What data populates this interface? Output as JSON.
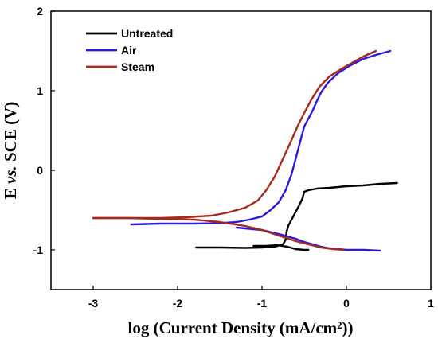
{
  "chart_data": {
    "type": "line",
    "title": "",
    "xlabel": "log (Current Density (mA/cm²))",
    "ylabel_parts": [
      "E ",
      "vs.",
      " SCE (V)"
    ],
    "xlim": [
      -3.5,
      1
    ],
    "ylim": [
      -1.5,
      2
    ],
    "xticks": [
      -3,
      -2,
      -1,
      0,
      1
    ],
    "yticks": [
      -1,
      0,
      1,
      2
    ],
    "grid": false,
    "legend_position": "top-left",
    "series": [
      {
        "name": "Untreated",
        "color": "#000000",
        "points": [
          [
            -1.78,
            -0.97
          ],
          [
            -1.5,
            -0.97
          ],
          [
            -1.2,
            -0.975
          ],
          [
            -1.0,
            -0.97
          ],
          [
            -0.85,
            -0.96
          ],
          [
            -0.75,
            -0.93
          ],
          [
            -0.72,
            -0.87
          ],
          [
            -0.71,
            -0.78
          ],
          [
            -0.69,
            -0.7
          ],
          [
            -0.65,
            -0.62
          ],
          [
            -0.6,
            -0.52
          ],
          [
            -0.55,
            -0.42
          ],
          [
            -0.52,
            -0.35
          ],
          [
            -0.5,
            -0.27
          ],
          [
            -0.45,
            -0.25
          ],
          [
            -0.35,
            -0.23
          ],
          [
            -0.2,
            -0.22
          ],
          [
            0.0,
            -0.2
          ],
          [
            0.2,
            -0.19
          ],
          [
            0.4,
            -0.17
          ],
          [
            0.6,
            -0.16
          ]
        ]
      },
      {
        "name": "",
        "color": "#000000",
        "points": [
          [
            -1.1,
            -0.95
          ],
          [
            -0.95,
            -0.95
          ],
          [
            -0.82,
            -0.94
          ],
          [
            -0.7,
            -0.96
          ],
          [
            -0.6,
            -0.99
          ],
          [
            -0.5,
            -1.0
          ],
          [
            -0.45,
            -1.0
          ]
        ]
      },
      {
        "name": "Air",
        "color": "#2b1adb",
        "points": [
          [
            -2.55,
            -0.68
          ],
          [
            -2.2,
            -0.67
          ],
          [
            -1.8,
            -0.67
          ],
          [
            -1.5,
            -0.665
          ],
          [
            -1.3,
            -0.65
          ],
          [
            -1.15,
            -0.62
          ],
          [
            -1.0,
            -0.58
          ],
          [
            -0.9,
            -0.5
          ],
          [
            -0.8,
            -0.4
          ],
          [
            -0.72,
            -0.25
          ],
          [
            -0.65,
            -0.05
          ],
          [
            -0.6,
            0.15
          ],
          [
            -0.55,
            0.35
          ],
          [
            -0.5,
            0.55
          ],
          [
            -0.45,
            0.65
          ],
          [
            -0.4,
            0.75
          ],
          [
            -0.35,
            0.87
          ],
          [
            -0.3,
            0.98
          ],
          [
            -0.22,
            1.1
          ],
          [
            -0.1,
            1.22
          ],
          [
            0.05,
            1.32
          ],
          [
            0.2,
            1.4
          ],
          [
            0.35,
            1.45
          ],
          [
            0.52,
            1.5
          ]
        ]
      },
      {
        "name": "",
        "color": "#2b1adb",
        "points": [
          [
            -1.3,
            -0.72
          ],
          [
            -1.0,
            -0.75
          ],
          [
            -0.8,
            -0.8
          ],
          [
            -0.6,
            -0.86
          ],
          [
            -0.5,
            -0.9
          ],
          [
            -0.4,
            -0.93
          ],
          [
            -0.3,
            -0.96
          ],
          [
            -0.2,
            -0.98
          ],
          [
            0.0,
            -1.0
          ],
          [
            0.2,
            -1.0
          ],
          [
            0.4,
            -1.01
          ]
        ]
      },
      {
        "name": "Steam",
        "color": "#a52a1e",
        "points": [
          [
            -3.0,
            -0.6
          ],
          [
            -2.6,
            -0.6
          ],
          [
            -2.2,
            -0.6
          ],
          [
            -1.9,
            -0.59
          ],
          [
            -1.6,
            -0.57
          ],
          [
            -1.4,
            -0.53
          ],
          [
            -1.2,
            -0.47
          ],
          [
            -1.05,
            -0.38
          ],
          [
            -0.95,
            -0.25
          ],
          [
            -0.85,
            -0.08
          ],
          [
            -0.75,
            0.15
          ],
          [
            -0.65,
            0.38
          ],
          [
            -0.58,
            0.55
          ],
          [
            -0.5,
            0.72
          ],
          [
            -0.42,
            0.88
          ],
          [
            -0.32,
            1.05
          ],
          [
            -0.2,
            1.18
          ],
          [
            -0.05,
            1.28
          ],
          [
            0.1,
            1.37
          ],
          [
            0.2,
            1.43
          ],
          [
            0.35,
            1.5
          ]
        ]
      },
      {
        "name": "",
        "color": "#a52a1e",
        "points": [
          [
            -3.0,
            -0.6
          ],
          [
            -2.6,
            -0.6
          ],
          [
            -2.2,
            -0.61
          ],
          [
            -1.8,
            -0.62
          ],
          [
            -1.5,
            -0.65
          ],
          [
            -1.2,
            -0.7
          ],
          [
            -1.0,
            -0.75
          ],
          [
            -0.8,
            -0.82
          ],
          [
            -0.6,
            -0.89
          ],
          [
            -0.45,
            -0.93
          ],
          [
            -0.3,
            -0.97
          ],
          [
            -0.15,
            -0.99
          ],
          [
            -0.03,
            -1.0
          ]
        ]
      }
    ]
  }
}
